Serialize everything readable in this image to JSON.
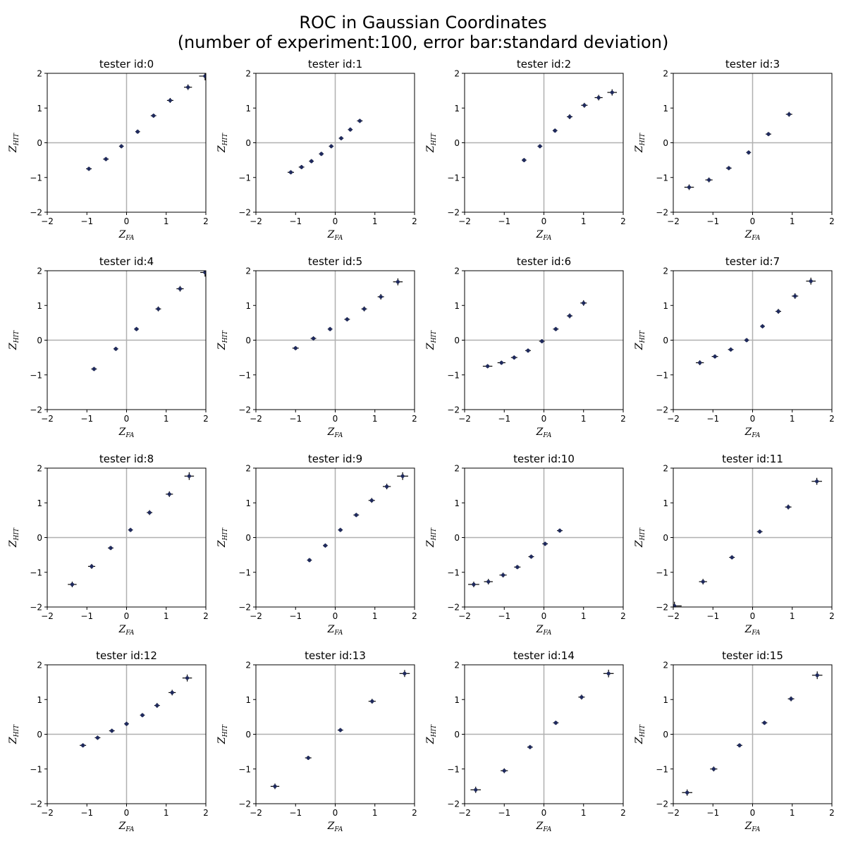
{
  "title_line1": "ROC in Gaussian Coordinates",
  "title_line2": "(number of experiment:100, error bar:standard deviation)",
  "axis_labels": {
    "x_base": "Z",
    "x_sub": "FA",
    "y_base": "Z",
    "y_sub": "HIT"
  },
  "tick_labels": [
    "−2",
    "−1",
    "0",
    "1",
    "2"
  ],
  "colors": {
    "marker": "#1f2a5e",
    "errorbar": "#000000",
    "refline": "#b0b0b0",
    "axes": "#000000"
  },
  "chart_data": [
    {
      "type": "scatter",
      "title": "tester id:0",
      "xlim": [
        -2,
        2
      ],
      "ylim": [
        -2,
        2
      ],
      "x": [
        -0.95,
        -0.52,
        -0.13,
        0.28,
        0.68,
        1.1,
        1.55,
        1.98
      ],
      "y": [
        -0.75,
        -0.47,
        -0.1,
        0.32,
        0.78,
        1.22,
        1.6,
        1.92
      ],
      "xerr": [
        0.07,
        0.07,
        0.06,
        0.06,
        0.07,
        0.08,
        0.1,
        0.15
      ],
      "yerr": [
        0.06,
        0.06,
        0.06,
        0.06,
        0.06,
        0.07,
        0.08,
        0.12
      ]
    },
    {
      "type": "scatter",
      "title": "tester id:1",
      "xlim": [
        -2,
        2
      ],
      "ylim": [
        -2,
        2
      ],
      "x": [
        -1.12,
        -0.85,
        -0.6,
        -0.35,
        -0.1,
        0.15,
        0.38,
        0.62
      ],
      "y": [
        -0.85,
        -0.7,
        -0.53,
        -0.32,
        -0.1,
        0.13,
        0.38,
        0.63
      ],
      "xerr": [
        0.08,
        0.07,
        0.06,
        0.06,
        0.06,
        0.06,
        0.06,
        0.07
      ],
      "yerr": [
        0.06,
        0.06,
        0.06,
        0.06,
        0.06,
        0.06,
        0.06,
        0.06
      ]
    },
    {
      "type": "scatter",
      "title": "tester id:2",
      "xlim": [
        -2,
        2
      ],
      "ylim": [
        -2,
        2
      ],
      "x": [
        -0.5,
        -0.1,
        0.28,
        0.65,
        1.02,
        1.38,
        1.72
      ],
      "y": [
        -0.5,
        -0.1,
        0.35,
        0.75,
        1.08,
        1.3,
        1.45
      ],
      "xerr": [
        0.06,
        0.06,
        0.06,
        0.07,
        0.08,
        0.1,
        0.12
      ],
      "yerr": [
        0.06,
        0.06,
        0.06,
        0.07,
        0.07,
        0.08,
        0.09
      ]
    },
    {
      "type": "scatter",
      "title": "tester id:3",
      "xlim": [
        -2,
        2
      ],
      "ylim": [
        -2,
        2
      ],
      "x": [
        -1.6,
        -1.1,
        -0.6,
        -0.1,
        0.4,
        0.92
      ],
      "y": [
        -1.28,
        -1.07,
        -0.73,
        -0.28,
        0.25,
        0.82
      ],
      "xerr": [
        0.12,
        0.09,
        0.07,
        0.06,
        0.07,
        0.08
      ],
      "yerr": [
        0.08,
        0.07,
        0.06,
        0.06,
        0.06,
        0.07
      ]
    },
    {
      "type": "scatter",
      "title": "tester id:4",
      "xlim": [
        -2,
        2
      ],
      "ylim": [
        -2,
        2
      ],
      "x": [
        -0.82,
        -0.27,
        0.25,
        0.8,
        1.35,
        1.98
      ],
      "y": [
        -0.83,
        -0.25,
        0.32,
        0.9,
        1.48,
        1.95
      ],
      "xerr": [
        0.07,
        0.06,
        0.06,
        0.07,
        0.09,
        0.12
      ],
      "yerr": [
        0.06,
        0.06,
        0.06,
        0.07,
        0.08,
        0.12
      ]
    },
    {
      "type": "scatter",
      "title": "tester id:5",
      "xlim": [
        -2,
        2
      ],
      "ylim": [
        -2,
        2
      ],
      "x": [
        -1.0,
        -0.55,
        -0.13,
        0.3,
        0.73,
        1.15,
        1.58
      ],
      "y": [
        -0.23,
        0.05,
        0.32,
        0.6,
        0.9,
        1.25,
        1.68
      ],
      "xerr": [
        0.08,
        0.07,
        0.06,
        0.07,
        0.07,
        0.08,
        0.12
      ],
      "yerr": [
        0.06,
        0.06,
        0.06,
        0.06,
        0.07,
        0.08,
        0.1
      ]
    },
    {
      "type": "scatter",
      "title": "tester id:6",
      "xlim": [
        -2,
        2
      ],
      "ylim": [
        -2,
        2
      ],
      "x": [
        -1.42,
        -1.07,
        -0.75,
        -0.4,
        -0.05,
        0.3,
        0.65,
        1.0
      ],
      "y": [
        -0.75,
        -0.65,
        -0.5,
        -0.3,
        -0.03,
        0.32,
        0.7,
        1.07
      ],
      "xerr": [
        0.12,
        0.1,
        0.08,
        0.07,
        0.07,
        0.07,
        0.07,
        0.08
      ],
      "yerr": [
        0.06,
        0.06,
        0.06,
        0.06,
        0.06,
        0.06,
        0.07,
        0.08
      ]
    },
    {
      "type": "scatter",
      "title": "tester id:7",
      "xlim": [
        -2,
        2
      ],
      "ylim": [
        -2,
        2
      ],
      "x": [
        -1.33,
        -0.95,
        -0.55,
        -0.15,
        0.25,
        0.65,
        1.07,
        1.47
      ],
      "y": [
        -0.65,
        -0.47,
        -0.27,
        0.0,
        0.4,
        0.83,
        1.27,
        1.7
      ],
      "xerr": [
        0.1,
        0.08,
        0.07,
        0.06,
        0.06,
        0.07,
        0.08,
        0.12
      ],
      "yerr": [
        0.07,
        0.06,
        0.06,
        0.06,
        0.06,
        0.07,
        0.08,
        0.1
      ]
    },
    {
      "type": "scatter",
      "title": "tester id:8",
      "xlim": [
        -2,
        2
      ],
      "ylim": [
        -2,
        2
      ],
      "x": [
        -1.37,
        -0.88,
        -0.4,
        0.1,
        0.58,
        1.08,
        1.58
      ],
      "y": [
        -1.35,
        -0.83,
        -0.3,
        0.22,
        0.72,
        1.25,
        1.77
      ],
      "xerr": [
        0.11,
        0.09,
        0.07,
        0.06,
        0.07,
        0.09,
        0.12
      ],
      "yerr": [
        0.08,
        0.07,
        0.06,
        0.06,
        0.07,
        0.08,
        0.11
      ]
    },
    {
      "type": "scatter",
      "title": "tester id:9",
      "xlim": [
        -2,
        2
      ],
      "ylim": [
        -2,
        2
      ],
      "x": [
        -0.65,
        -0.25,
        0.13,
        0.53,
        0.92,
        1.3,
        1.7
      ],
      "y": [
        -0.65,
        -0.23,
        0.22,
        0.65,
        1.07,
        1.47,
        1.77
      ],
      "xerr": [
        0.06,
        0.06,
        0.06,
        0.07,
        0.08,
        0.1,
        0.14
      ],
      "yerr": [
        0.06,
        0.06,
        0.06,
        0.06,
        0.07,
        0.08,
        0.11
      ]
    },
    {
      "type": "scatter",
      "title": "tester id:10",
      "xlim": [
        -2,
        2
      ],
      "ylim": [
        -2,
        2
      ],
      "x": [
        -1.77,
        -1.4,
        -1.03,
        -0.67,
        -0.32,
        0.03,
        0.4
      ],
      "y": [
        -1.35,
        -1.27,
        -1.08,
        -0.85,
        -0.55,
        -0.18,
        0.2
      ],
      "xerr": [
        0.14,
        0.11,
        0.09,
        0.08,
        0.07,
        0.07,
        0.07
      ],
      "yerr": [
        0.08,
        0.08,
        0.07,
        0.06,
        0.06,
        0.06,
        0.06
      ]
    },
    {
      "type": "scatter",
      "title": "tester id:11",
      "xlim": [
        -2,
        2
      ],
      "ylim": [
        -2,
        2
      ],
      "x": [
        -1.97,
        -1.25,
        -0.52,
        0.18,
        0.9,
        1.62
      ],
      "y": [
        -1.97,
        -1.27,
        -0.57,
        0.17,
        0.88,
        1.62
      ],
      "xerr": [
        0.18,
        0.1,
        0.07,
        0.07,
        0.08,
        0.13
      ],
      "yerr": [
        0.12,
        0.08,
        0.06,
        0.06,
        0.07,
        0.1
      ]
    },
    {
      "type": "scatter",
      "title": "tester id:12",
      "xlim": [
        -2,
        2
      ],
      "ylim": [
        -2,
        2
      ],
      "x": [
        -1.1,
        -0.73,
        -0.37,
        0.0,
        0.4,
        0.77,
        1.15,
        1.53
      ],
      "y": [
        -0.32,
        -0.1,
        0.1,
        0.3,
        0.55,
        0.83,
        1.2,
        1.62
      ],
      "xerr": [
        0.08,
        0.07,
        0.07,
        0.06,
        0.06,
        0.07,
        0.09,
        0.12
      ],
      "yerr": [
        0.06,
        0.06,
        0.06,
        0.06,
        0.06,
        0.07,
        0.08,
        0.1
      ]
    },
    {
      "type": "scatter",
      "title": "tester id:13",
      "xlim": [
        -2,
        2
      ],
      "ylim": [
        -2,
        2
      ],
      "x": [
        -1.52,
        -0.68,
        0.13,
        0.93,
        1.75
      ],
      "y": [
        -1.5,
        -0.68,
        0.12,
        0.95,
        1.75
      ],
      "xerr": [
        0.11,
        0.08,
        0.07,
        0.09,
        0.13
      ],
      "yerr": [
        0.08,
        0.06,
        0.06,
        0.07,
        0.1
      ]
    },
    {
      "type": "scatter",
      "title": "tester id:14",
      "xlim": [
        -2,
        2
      ],
      "ylim": [
        -2,
        2
      ],
      "x": [
        -1.72,
        -1.0,
        -0.35,
        0.3,
        0.95,
        1.63
      ],
      "y": [
        -1.6,
        -1.05,
        -0.37,
        0.33,
        1.07,
        1.75
      ],
      "xerr": [
        0.13,
        0.09,
        0.07,
        0.07,
        0.08,
        0.13
      ],
      "yerr": [
        0.09,
        0.07,
        0.06,
        0.06,
        0.07,
        0.11
      ]
    },
    {
      "type": "scatter",
      "title": "tester id:15",
      "xlim": [
        -2,
        2
      ],
      "ylim": [
        -2,
        2
      ],
      "x": [
        -1.65,
        -0.98,
        -0.33,
        0.3,
        0.97,
        1.63
      ],
      "y": [
        -1.68,
        -1.0,
        -0.32,
        0.33,
        1.02,
        1.7
      ],
      "xerr": [
        0.13,
        0.09,
        0.07,
        0.07,
        0.08,
        0.13
      ],
      "yerr": [
        0.09,
        0.07,
        0.06,
        0.06,
        0.07,
        0.11
      ]
    }
  ]
}
